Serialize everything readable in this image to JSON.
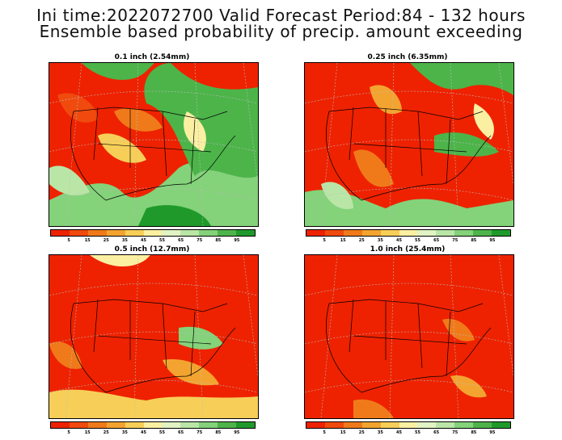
{
  "header": {
    "line1": "Ini time:2022072700  Valid Forecast Period:84 - 132 hours",
    "line2": "Ensemble based probability of precip. amount exceeding"
  },
  "panels": [
    {
      "title": "0.1 inch (2.54mm)",
      "id": "p1"
    },
    {
      "title": "0.25 inch (6.35mm)",
      "id": "p2"
    },
    {
      "title": "0.5 inch (12.7mm)",
      "id": "p3"
    },
    {
      "title": "1.0 inch (25.4mm)",
      "id": "p4"
    }
  ],
  "colorbar": {
    "ticks": [
      "5",
      "15",
      "25",
      "35",
      "45",
      "55",
      "65",
      "75",
      "85",
      "95"
    ],
    "colors": [
      "#ee2200",
      "#f04a0e",
      "#f07a1a",
      "#f3a430",
      "#f7cf58",
      "#fbf0a2",
      "#e2f3c4",
      "#b9e6a6",
      "#84d27a",
      "#4db44a",
      "#1f9a2a"
    ]
  }
}
